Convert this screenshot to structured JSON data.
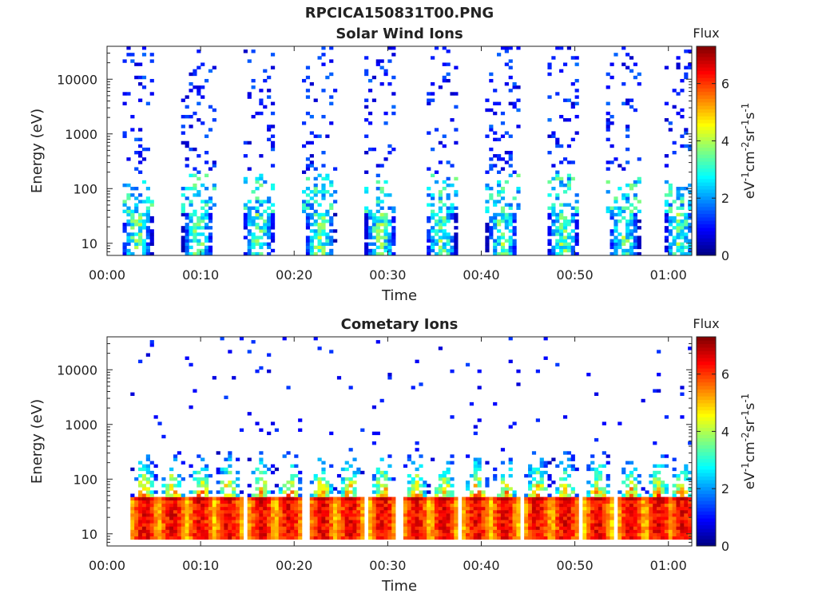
{
  "figure_title": "RPCICA150831T00.PNG",
  "chart_data": [
    {
      "type": "heatmap",
      "title": "Solar Wind Ions",
      "xlabel": "Time",
      "ylabel": "Energy (eV)",
      "y_scale": "log",
      "ylim": [
        6,
        40000
      ],
      "xlim_minutes": [
        0,
        62.5
      ],
      "x_ticks": [
        "00:00",
        "00:10",
        "00:20",
        "00:30",
        "00:40",
        "00:50",
        "01:00"
      ],
      "y_ticks": [
        "10",
        "100",
        "1000",
        "10000"
      ],
      "colorbar": {
        "title": "Flux",
        "label": "eV-1cm-2sr-1s-1",
        "ticks": [
          "0",
          "2",
          "4",
          "6"
        ],
        "range": [
          0,
          7.3
        ],
        "colormap": "jet"
      },
      "bursts_start_minutes": [
        1.5,
        8.0,
        14.5,
        21.0,
        27.5,
        34.0,
        40.5,
        47.0,
        53.5,
        59.5
      ],
      "burst_width_minutes": 3.5,
      "peak_energy_eV": 30,
      "peak_flux": 4.3,
      "grid": false
    },
    {
      "type": "heatmap",
      "title": "Cometary Ions",
      "xlabel": "Time",
      "ylabel": "Energy (eV)",
      "y_scale": "log",
      "ylim": [
        6,
        40000
      ],
      "xlim_minutes": [
        0,
        62.5
      ],
      "x_ticks": [
        "00:00",
        "00:10",
        "00:20",
        "00:30",
        "00:40",
        "00:50",
        "01:00"
      ],
      "y_ticks": [
        "10",
        "100",
        "1000",
        "10000"
      ],
      "colorbar": {
        "title": "Flux",
        "label": "eV-1cm-2sr-1s-1",
        "ticks": [
          "0",
          "2",
          "4",
          "6"
        ],
        "range": [
          0,
          7.3
        ],
        "colormap": "jet"
      },
      "bursts_start_minutes": [
        2.5,
        5.5,
        8.5,
        11.5,
        15.0,
        18.0,
        21.5,
        24.5,
        28.0,
        31.5,
        34.5,
        38.0,
        41.0,
        44.5,
        47.5,
        51.0,
        54.5,
        57.5,
        60.0
      ],
      "burst_width_minutes": 3.0,
      "peak_energy_eV": 40,
      "peak_flux": 7.0,
      "grid": false
    }
  ]
}
